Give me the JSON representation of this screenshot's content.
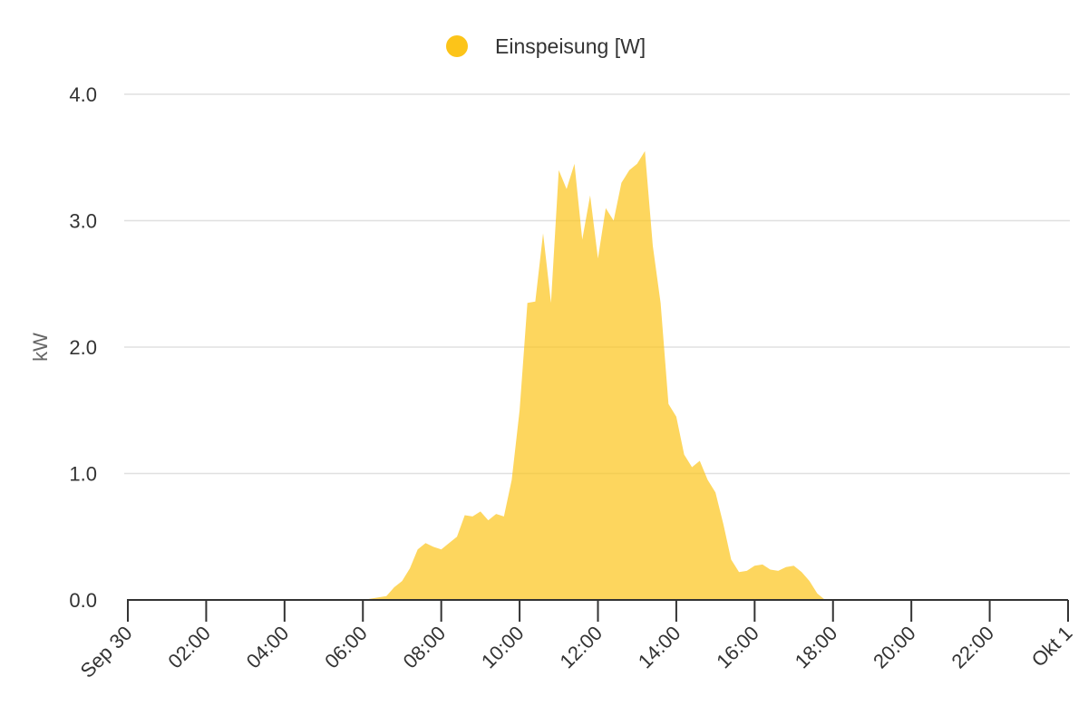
{
  "chart_data": {
    "type": "area",
    "ylabel": "kW",
    "ylim": [
      0,
      4.0
    ],
    "grid": true,
    "legend_position": "top-center",
    "y_ticks": [
      "0.0",
      "1.0",
      "2.0",
      "3.0",
      "4.0"
    ],
    "x_tick_labels": [
      "Sep 30",
      "02:00",
      "04:00",
      "06:00",
      "08:00",
      "10:00",
      "12:00",
      "14:00",
      "16:00",
      "18:00",
      "20:00",
      "22:00",
      "Okt 1"
    ],
    "series": [
      {
        "name": "Einspeisung [W]",
        "color": "#fcc419",
        "x_hours": [
          0,
          6.0,
          6.6,
          6.8,
          7.0,
          7.2,
          7.4,
          7.6,
          7.8,
          8.0,
          8.2,
          8.4,
          8.6,
          8.8,
          9.0,
          9.2,
          9.4,
          9.6,
          9.8,
          10.0,
          10.2,
          10.4,
          10.6,
          10.8,
          11.0,
          11.2,
          11.4,
          11.6,
          11.8,
          12.0,
          12.2,
          12.4,
          12.6,
          12.8,
          13.0,
          13.2,
          13.4,
          13.6,
          13.8,
          14.0,
          14.2,
          14.4,
          14.6,
          14.8,
          15.0,
          15.2,
          15.4,
          15.6,
          15.8,
          16.0,
          16.2,
          16.4,
          16.6,
          16.8,
          17.0,
          17.2,
          17.4,
          17.6,
          17.8,
          24
        ],
        "values": [
          0,
          0,
          0.03,
          0.1,
          0.15,
          0.25,
          0.4,
          0.45,
          0.42,
          0.4,
          0.45,
          0.5,
          0.67,
          0.66,
          0.7,
          0.63,
          0.68,
          0.66,
          0.95,
          1.5,
          2.35,
          2.36,
          2.9,
          2.35,
          3.4,
          3.25,
          3.45,
          2.85,
          3.2,
          2.7,
          3.1,
          3.0,
          3.3,
          3.4,
          3.45,
          3.55,
          2.8,
          2.35,
          1.55,
          1.45,
          1.15,
          1.05,
          1.1,
          0.95,
          0.85,
          0.6,
          0.32,
          0.22,
          0.23,
          0.27,
          0.28,
          0.24,
          0.23,
          0.26,
          0.27,
          0.22,
          0.15,
          0.05,
          0,
          0
        ]
      }
    ]
  }
}
